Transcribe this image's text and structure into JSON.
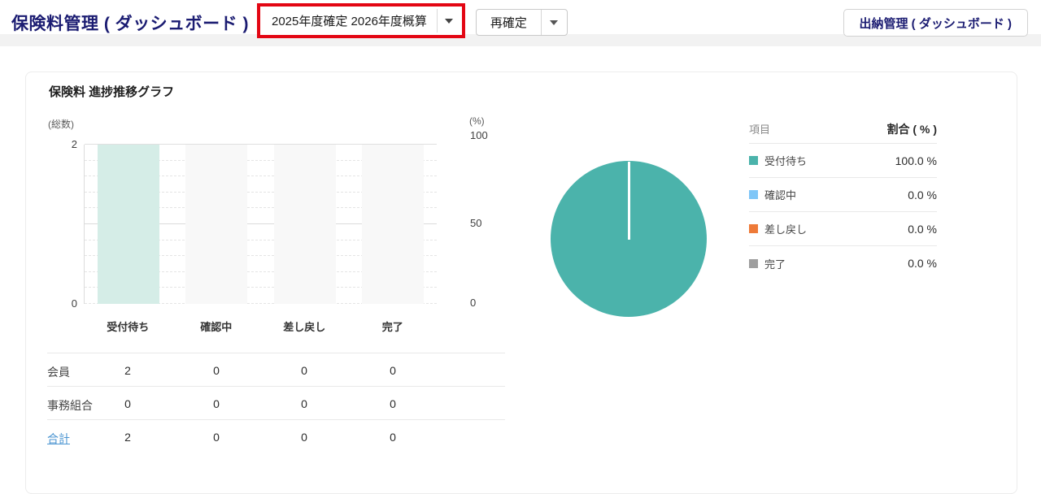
{
  "header": {
    "title": "保険料管理 ( ダッシュボード )",
    "fiscal_selector": {
      "value": "2025年度確定 2026年度概算"
    },
    "reconfirm_button": {
      "label": "再確定"
    },
    "cashier_dashboard_button": {
      "label": "出納管理 ( ダッシュボード )"
    },
    "colors": {
      "title_navy": "#1b1c72",
      "annotation_red": "#e30613"
    }
  },
  "panel": {
    "title": "保険料 進捗推移グラフ"
  },
  "chart_data": [
    {
      "type": "bar",
      "title": "保険料 進捗推移グラフ",
      "categories": [
        "受付待ち",
        "確認中",
        "差し戻し",
        "完了"
      ],
      "series": [
        {
          "name": "会員",
          "values": [
            2,
            0,
            0,
            0
          ]
        },
        {
          "name": "事務組合",
          "values": [
            0,
            0,
            0,
            0
          ]
        },
        {
          "name": "合計",
          "values": [
            2,
            0,
            0,
            0
          ]
        }
      ],
      "left_axis": {
        "label": "(総数)",
        "ticks": [
          "2",
          "0"
        ],
        "min": 0,
        "max": 2
      },
      "right_axis": {
        "label": "(%)",
        "ticks": [
          "100",
          "50",
          "0"
        ],
        "min": 0,
        "max": 100
      },
      "bar_color": "#d5ede7",
      "grid": "dashed horizontal every 10%, solid at 50% and 100%",
      "legend_position": "none"
    },
    {
      "type": "pie",
      "legend_headers": {
        "item": "項目",
        "ratio": "割合 ( % )"
      },
      "slices": [
        {
          "label": "受付待ち",
          "value": 100.0,
          "display": "100.0 %",
          "color": "#4bb3ab"
        },
        {
          "label": "確認中",
          "value": 0.0,
          "display": "0.0 %",
          "color": "#7fc6f7"
        },
        {
          "label": "差し戻し",
          "value": 0.0,
          "display": "0.0 %",
          "color": "#ee7a38"
        },
        {
          "label": "完了",
          "value": 0.0,
          "display": "0.0 %",
          "color": "#9e9e9e"
        }
      ],
      "legend_position": "right"
    }
  ]
}
